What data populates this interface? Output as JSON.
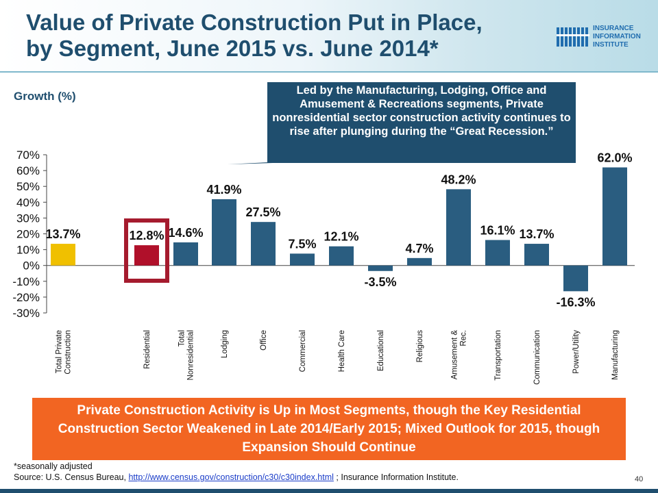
{
  "header": {
    "title_line1": "Value of Private Construction Put in Place,",
    "title_line2": "by Segment,  June 2015 vs. June 2014*",
    "logo_line1": "INSURANCE",
    "logo_line2": "INFORMATION",
    "logo_line3": "INSTITUTE"
  },
  "callout": {
    "text": "Led by the Manufacturing, Lodging, Office and Amusement & Recreations segments, Private nonresidential sector construction activity continues to rise after plunging during the “Great Recession.”"
  },
  "banner": {
    "text": "Private Construction Activity is Up in Most Segments, though the Key Residential Construction Sector Weakened in Late 2014/Early 2015; Mixed Outlook for 2015, though Expansion Should Continue"
  },
  "footer": {
    "footnote": "*seasonally adjusted",
    "source_prefix": "Source: U.S. Census Bureau, ",
    "source_link": "http://www.census.gov/construction/c30/c30index.html",
    "source_suffix": " ; Insurance Information Institute.",
    "page_number": "40"
  },
  "colors": {
    "title": "#1f4e6e",
    "bar_default": "#2a5d80",
    "bar_total": "#f0c000",
    "bar_residential": "#b0102a",
    "highlight_box": "#a51b2e",
    "callout_bg": "#1f4e6e",
    "banner_bg": "#f26522"
  },
  "chart_data": {
    "type": "bar",
    "ylabel": "Growth (%)",
    "ylim": [
      -30,
      70
    ],
    "yticks": [
      "70%",
      "60%",
      "50%",
      "40%",
      "30%",
      "20%",
      "10%",
      "0%",
      "-10%",
      "-20%",
      "-30%"
    ],
    "categories": [
      [
        "Total Private",
        "Construction"
      ],
      [
        "Residential"
      ],
      [
        "Total",
        "Nonresidential"
      ],
      [
        "Lodging"
      ],
      [
        "Office"
      ],
      [
        "Commercial"
      ],
      [
        "Health Care"
      ],
      [
        "Educational"
      ],
      [
        "Religious"
      ],
      [
        "Amusement &",
        "Rec."
      ],
      [
        "Transportation"
      ],
      [
        "Communication"
      ],
      [
        "Power/Utility"
      ],
      [
        "Manufacturing"
      ]
    ],
    "values": [
      13.7,
      12.8,
      14.6,
      41.9,
      27.5,
      7.5,
      12.1,
      -3.5,
      4.7,
      48.2,
      16.1,
      13.7,
      -16.3,
      62.0
    ],
    "data_labels": [
      "13.7%",
      "12.8%",
      "14.6%",
      "41.9%",
      "27.5%",
      "7.5%",
      "12.1%",
      "-3.5%",
      "4.7%",
      "48.2%",
      "16.1%",
      "13.7%",
      "-16.3%",
      "62.0%"
    ],
    "bar_colors": [
      "#f0c000",
      "#b0102a",
      "#2a5d80",
      "#2a5d80",
      "#2a5d80",
      "#2a5d80",
      "#2a5d80",
      "#2a5d80",
      "#2a5d80",
      "#2a5d80",
      "#2a5d80",
      "#2a5d80",
      "#2a5d80",
      "#2a5d80"
    ],
    "highlighted_category": "Residential",
    "grid": false,
    "legend": "none"
  }
}
